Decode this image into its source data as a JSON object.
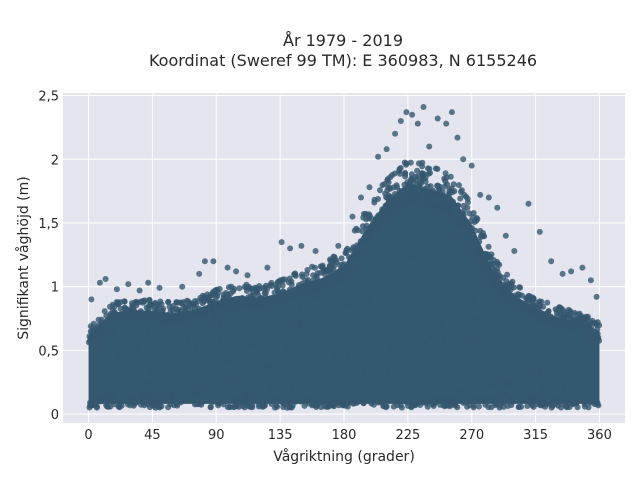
{
  "chart_data": {
    "type": "scatter",
    "title_line1": "År 1979 - 2019",
    "title_line2": "Koordinat (Sweref 99 TM): E 360983, N 6155246",
    "xlabel": "Vågriktning (grader)",
    "ylabel": "Signifikant våghöjd (m)",
    "xlim": [
      -18,
      378
    ],
    "ylim": [
      -0.07,
      2.52
    ],
    "xticks": [
      0,
      45,
      90,
      135,
      180,
      225,
      270,
      315,
      360
    ],
    "xtick_labels": [
      "0",
      "45",
      "90",
      "135",
      "180",
      "225",
      "270",
      "315",
      "360"
    ],
    "yticks": [
      0,
      0.5,
      1,
      1.5,
      2,
      2.5
    ],
    "ytick_labels": [
      "0",
      "0,5",
      "1",
      "1,5",
      "2",
      "2,5"
    ],
    "grid": true,
    "marker_color": "#34586f",
    "background_color": "#e5e5ef",
    "envelope_direction": [
      0,
      15,
      30,
      45,
      60,
      75,
      90,
      105,
      120,
      135,
      150,
      165,
      180,
      195,
      210,
      225,
      240,
      255,
      270,
      285,
      300,
      315,
      330,
      345,
      360
    ],
    "envelope_upper_height": [
      0.65,
      0.85,
      0.88,
      0.87,
      0.85,
      0.88,
      0.95,
      1.0,
      0.98,
      1.02,
      1.1,
      1.15,
      1.25,
      1.55,
      1.8,
      1.95,
      1.9,
      1.85,
      1.6,
      1.2,
      1.0,
      0.9,
      0.82,
      0.78,
      0.7
    ],
    "envelope_lower_height": [
      0.05,
      0.05,
      0.05,
      0.05,
      0.05,
      0.05,
      0.05,
      0.05,
      0.05,
      0.05,
      0.05,
      0.05,
      0.05,
      0.05,
      0.05,
      0.05,
      0.05,
      0.05,
      0.05,
      0.05,
      0.05,
      0.05,
      0.05,
      0.05,
      0.05
    ],
    "outlier_points": [
      {
        "x": 2,
        "y": 0.9
      },
      {
        "x": 8,
        "y": 1.03
      },
      {
        "x": 12,
        "y": 1.06
      },
      {
        "x": 20,
        "y": 0.98
      },
      {
        "x": 28,
        "y": 1.02
      },
      {
        "x": 36,
        "y": 0.97
      },
      {
        "x": 42,
        "y": 1.03
      },
      {
        "x": 50,
        "y": 0.99
      },
      {
        "x": 66,
        "y": 1.0
      },
      {
        "x": 78,
        "y": 1.1
      },
      {
        "x": 82,
        "y": 1.2
      },
      {
        "x": 88,
        "y": 1.2
      },
      {
        "x": 98,
        "y": 1.15
      },
      {
        "x": 104,
        "y": 1.12
      },
      {
        "x": 112,
        "y": 1.09
      },
      {
        "x": 126,
        "y": 1.15
      },
      {
        "x": 136,
        "y": 1.35
      },
      {
        "x": 142,
        "y": 1.3
      },
      {
        "x": 150,
        "y": 1.32
      },
      {
        "x": 160,
        "y": 1.28
      },
      {
        "x": 176,
        "y": 1.32
      },
      {
        "x": 186,
        "y": 1.55
      },
      {
        "x": 192,
        "y": 1.7
      },
      {
        "x": 198,
        "y": 1.78
      },
      {
        "x": 204,
        "y": 2.02
      },
      {
        "x": 210,
        "y": 2.08
      },
      {
        "x": 216,
        "y": 2.2
      },
      {
        "x": 220,
        "y": 2.3
      },
      {
        "x": 224,
        "y": 2.37
      },
      {
        "x": 228,
        "y": 2.35
      },
      {
        "x": 232,
        "y": 2.28
      },
      {
        "x": 236,
        "y": 2.41
      },
      {
        "x": 240,
        "y": 2.1
      },
      {
        "x": 246,
        "y": 2.32
      },
      {
        "x": 252,
        "y": 2.28
      },
      {
        "x": 256,
        "y": 2.37
      },
      {
        "x": 260,
        "y": 2.17
      },
      {
        "x": 264,
        "y": 2.0
      },
      {
        "x": 270,
        "y": 1.95
      },
      {
        "x": 276,
        "y": 1.72
      },
      {
        "x": 282,
        "y": 1.7
      },
      {
        "x": 288,
        "y": 1.62
      },
      {
        "x": 294,
        "y": 1.4
      },
      {
        "x": 300,
        "y": 1.28
      },
      {
        "x": 310,
        "y": 1.65
      },
      {
        "x": 318,
        "y": 1.43
      },
      {
        "x": 326,
        "y": 1.2
      },
      {
        "x": 334,
        "y": 1.1
      },
      {
        "x": 340,
        "y": 1.12
      },
      {
        "x": 348,
        "y": 1.15
      },
      {
        "x": 354,
        "y": 1.05
      },
      {
        "x": 358,
        "y": 0.92
      }
    ]
  }
}
